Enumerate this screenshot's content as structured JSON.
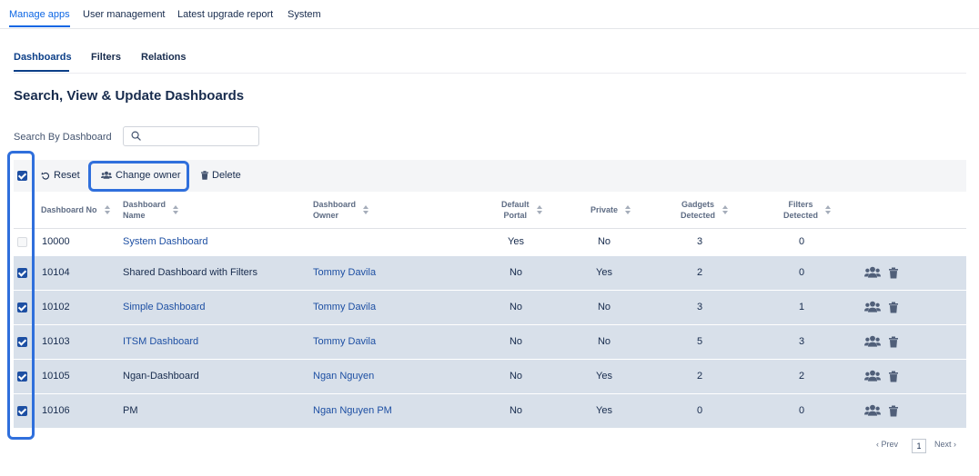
{
  "top_tabs": [
    {
      "label": "Manage apps",
      "active": true
    },
    {
      "label": "User management",
      "active": false
    },
    {
      "label": "Latest upgrade report",
      "active": false
    },
    {
      "label": "System",
      "active": false
    }
  ],
  "sub_tabs": [
    {
      "label": "Dashboards",
      "active": true
    },
    {
      "label": "Filters",
      "active": false
    },
    {
      "label": "Relations",
      "active": false
    }
  ],
  "page_title": "Search, View & Update Dashboards",
  "search": {
    "label": "Search By Dashboard",
    "value": "",
    "icon": "search-icon"
  },
  "toolbar": {
    "select_all_checked": true,
    "reset_label": "Reset",
    "change_owner_label": "Change owner",
    "delete_label": "Delete"
  },
  "columns": [
    {
      "l1": "Dashboard No",
      "l2": ""
    },
    {
      "l1": "Dashboard",
      "l2": "Name"
    },
    {
      "l1": "Dashboard",
      "l2": "Owner"
    },
    {
      "l1": "Default",
      "l2": "Portal"
    },
    {
      "l1": "Private",
      "l2": ""
    },
    {
      "l1": "Gadgets",
      "l2": "Detected"
    },
    {
      "l1": "Filters",
      "l2": "Detected"
    }
  ],
  "rows": [
    {
      "checked": false,
      "no": "10000",
      "name": "System Dashboard",
      "name_link": true,
      "owner": "",
      "default_portal": "Yes",
      "private": "No",
      "gadgets": "3",
      "filters": "0",
      "actions": false
    },
    {
      "checked": true,
      "no": "10104",
      "name": "Shared Dashboard with Filters",
      "name_link": false,
      "owner": "Tommy Davila",
      "default_portal": "No",
      "private": "Yes",
      "gadgets": "2",
      "filters": "0",
      "actions": true
    },
    {
      "checked": true,
      "no": "10102",
      "name": "Simple Dashboard",
      "name_link": true,
      "owner": "Tommy Davila",
      "default_portal": "No",
      "private": "No",
      "gadgets": "3",
      "filters": "1",
      "actions": true
    },
    {
      "checked": true,
      "no": "10103",
      "name": "ITSM Dashboard",
      "name_link": true,
      "owner": "Tommy Davila",
      "default_portal": "No",
      "private": "No",
      "gadgets": "5",
      "filters": "3",
      "actions": true
    },
    {
      "checked": true,
      "no": "10105",
      "name": "Ngan-Dashboard",
      "name_link": false,
      "owner": "Ngan Nguyen",
      "default_portal": "No",
      "private": "Yes",
      "gadgets": "2",
      "filters": "2",
      "actions": true
    },
    {
      "checked": true,
      "no": "10106",
      "name": "PM",
      "name_link": false,
      "owner": "Ngan Nguyen PM",
      "default_portal": "No",
      "private": "Yes",
      "gadgets": "0",
      "filters": "0",
      "actions": true
    }
  ],
  "pagination": {
    "prev_label": "Prev",
    "current_page": "1",
    "next_label": "Next"
  },
  "colors": {
    "accent": "#0c66e4",
    "selected_row": "#d8e0ea",
    "checkbox": "#1d4fa3",
    "highlight": "#2f6fdc"
  }
}
